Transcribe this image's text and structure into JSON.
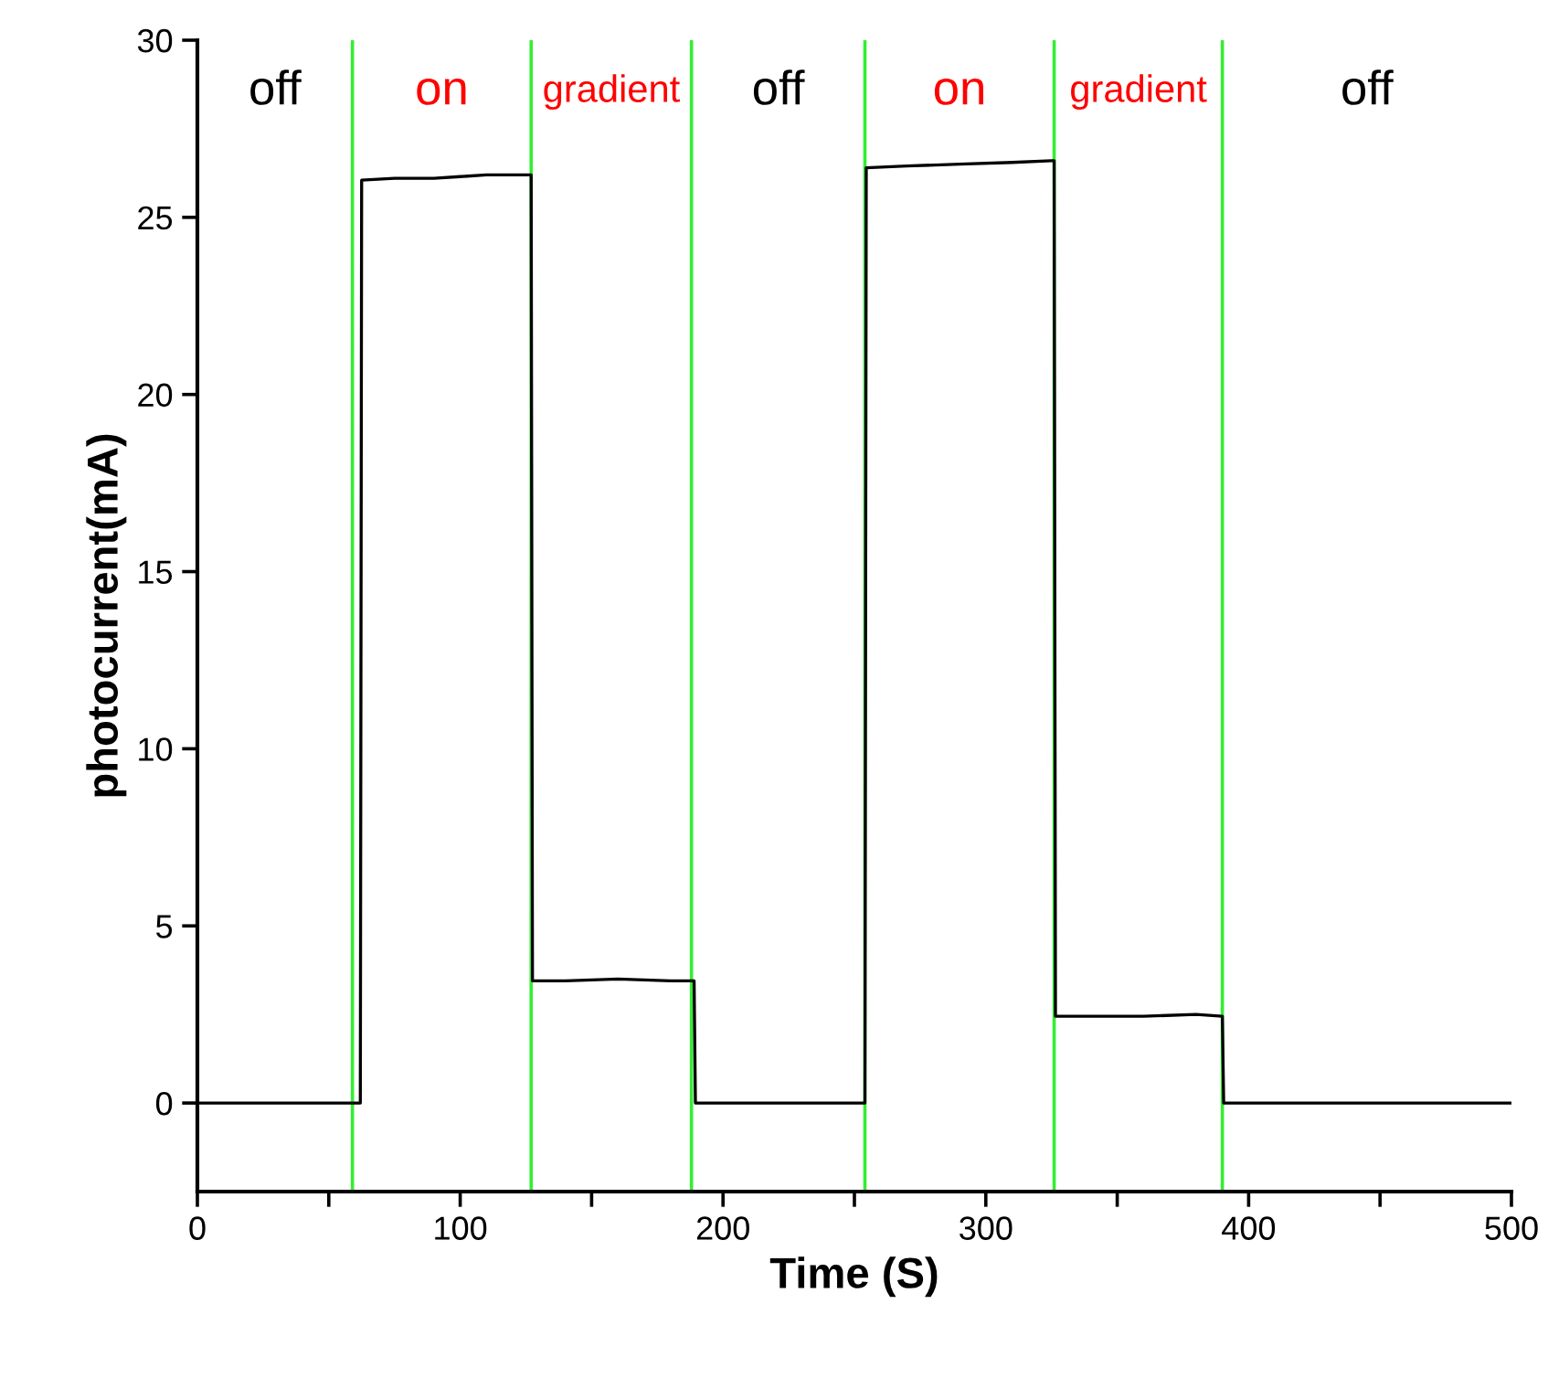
{
  "chart_data": {
    "type": "line",
    "xlabel": "Time (S)",
    "ylabel": "photocurrent(mA)",
    "xlim": [
      0,
      500
    ],
    "ylim": [
      -2.5,
      30
    ],
    "xticks": [
      0,
      {
        "value": 50,
        "label": null
      },
      100,
      {
        "value": 150,
        "label": null
      },
      200,
      {
        "value": 250,
        "label": null
      },
      300,
      {
        "value": 350,
        "label": null
      },
      400,
      {
        "value": 450,
        "label": null
      },
      500
    ],
    "yticks": [
      0,
      5,
      10,
      15,
      20,
      25,
      30
    ],
    "grid": false,
    "legend": false,
    "marker": "none",
    "line_style": "solid",
    "series": [
      {
        "color": "#000000",
        "x": [
          0,
          62,
          62.5,
          75,
          90,
          100,
          110,
          120,
          127,
          127.5,
          140,
          160,
          180,
          189,
          189.5,
          220,
          254,
          254.5,
          270,
          290,
          310,
          325,
          326,
          326.5,
          340,
          360,
          380,
          390,
          390.5,
          450,
          500
        ],
        "values": [
          0,
          0,
          26.05,
          26.1,
          26.1,
          26.15,
          26.2,
          26.2,
          26.2,
          3.45,
          3.45,
          3.5,
          3.45,
          3.45,
          0,
          0,
          0,
          26.4,
          26.45,
          26.5,
          26.55,
          26.6,
          26.6,
          2.45,
          2.45,
          2.45,
          2.5,
          2.45,
          0,
          0,
          0
        ]
      }
    ],
    "ref_lines": [
      {
        "axis": "x",
        "value": 59,
        "color": "#33ee33"
      },
      {
        "axis": "x",
        "value": 127,
        "color": "#33ee33"
      },
      {
        "axis": "x",
        "value": 188,
        "color": "#33ee33"
      },
      {
        "axis": "x",
        "value": 254,
        "color": "#33ee33"
      },
      {
        "axis": "x",
        "value": 326,
        "color": "#33ee33"
      },
      {
        "axis": "x",
        "value": 390,
        "color": "#33ee33"
      }
    ],
    "annotations": [
      "off",
      "on",
      "gradient",
      "off",
      "on",
      "gradient",
      "off"
    ]
  }
}
